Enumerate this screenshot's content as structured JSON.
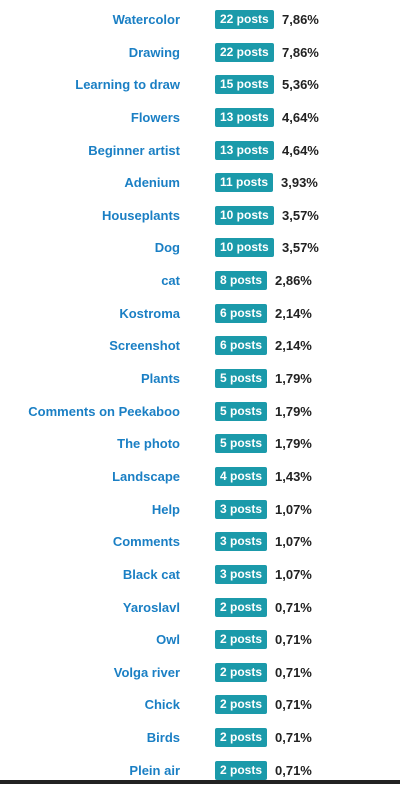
{
  "colors": {
    "tag_link": "#1a7fc4",
    "count_badge_bg": "#1b9aaa",
    "count_badge_text": "#ffffff",
    "percent_text": "#222222"
  },
  "tags": [
    {
      "name": "Watercolor",
      "count": "22 posts",
      "percent": "7,86%"
    },
    {
      "name": "Drawing",
      "count": "22 posts",
      "percent": "7,86%"
    },
    {
      "name": "Learning to draw",
      "count": "15 posts",
      "percent": "5,36%"
    },
    {
      "name": "Flowers",
      "count": "13 posts",
      "percent": "4,64%"
    },
    {
      "name": "Beginner artist",
      "count": "13 posts",
      "percent": "4,64%"
    },
    {
      "name": "Adenium",
      "count": "11 posts",
      "percent": "3,93%"
    },
    {
      "name": "Houseplants",
      "count": "10 posts",
      "percent": "3,57%"
    },
    {
      "name": "Dog",
      "count": "10 posts",
      "percent": "3,57%"
    },
    {
      "name": "cat",
      "count": "8 posts",
      "percent": "2,86%"
    },
    {
      "name": "Kostroma",
      "count": "6 posts",
      "percent": "2,14%"
    },
    {
      "name": "Screenshot",
      "count": "6 posts",
      "percent": "2,14%"
    },
    {
      "name": "Plants",
      "count": "5 posts",
      "percent": "1,79%"
    },
    {
      "name": "Comments on Peekaboo",
      "count": "5 posts",
      "percent": "1,79%"
    },
    {
      "name": "The photo",
      "count": "5 posts",
      "percent": "1,79%"
    },
    {
      "name": "Landscape",
      "count": "4 posts",
      "percent": "1,43%"
    },
    {
      "name": "Help",
      "count": "3 posts",
      "percent": "1,07%"
    },
    {
      "name": "Comments",
      "count": "3 posts",
      "percent": "1,07%"
    },
    {
      "name": "Black cat",
      "count": "3 posts",
      "percent": "1,07%"
    },
    {
      "name": "Yaroslavl",
      "count": "2 posts",
      "percent": "0,71%"
    },
    {
      "name": "Owl",
      "count": "2 posts",
      "percent": "0,71%"
    },
    {
      "name": "Volga river",
      "count": "2 posts",
      "percent": "0,71%"
    },
    {
      "name": "Chick",
      "count": "2 posts",
      "percent": "0,71%"
    },
    {
      "name": "Birds",
      "count": "2 posts",
      "percent": "0,71%"
    },
    {
      "name": "Plein air",
      "count": "2 posts",
      "percent": "0,71%"
    }
  ]
}
